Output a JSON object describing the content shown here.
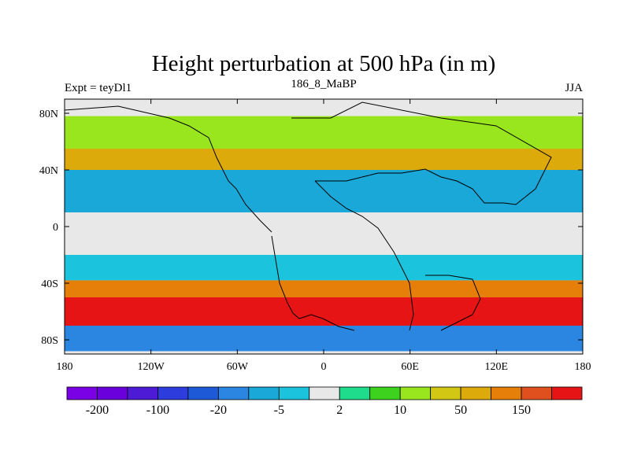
{
  "chart_data": {
    "type": "heatmap",
    "title": "Height perturbation at 500 hPa (in m)",
    "subtitle_left": "Expt = teyDl1",
    "subtitle_center": "186_8_MaBP",
    "subtitle_right": "JJA",
    "xlim": [
      -180,
      180
    ],
    "ylim": [
      -90,
      90
    ],
    "x_ticks": [
      {
        "value": -180,
        "label": "180"
      },
      {
        "value": -120,
        "label": "120W"
      },
      {
        "value": -60,
        "label": "60W"
      },
      {
        "value": 0,
        "label": "0"
      },
      {
        "value": 60,
        "label": "60E"
      },
      {
        "value": 120,
        "label": "120E"
      },
      {
        "value": 180,
        "label": "180"
      }
    ],
    "y_ticks": [
      {
        "value": 80,
        "label": "80N"
      },
      {
        "value": 40,
        "label": "40N"
      },
      {
        "value": 0,
        "label": "0"
      },
      {
        "value": -40,
        "label": "40S"
      },
      {
        "value": -80,
        "label": "80S"
      }
    ],
    "colorbar": {
      "colors": [
        "#7a00e6",
        "#6a00dc",
        "#4d1ad6",
        "#2d3cdd",
        "#1e5ad8",
        "#2a86e0",
        "#19a8d8",
        "#1bc4dc",
        "#e8e8e8",
        "#1edc8c",
        "#3cd21e",
        "#9ae61e",
        "#d2c814",
        "#dcaa0a",
        "#e67e0a",
        "#e0501e",
        "#e61414"
      ],
      "labels": [
        {
          "edge": 1,
          "text": "-200"
        },
        {
          "edge": 3,
          "text": "-100"
        },
        {
          "edge": 5,
          "text": "-20"
        },
        {
          "edge": 7,
          "text": "-5"
        },
        {
          "edge": 9,
          "text": "2"
        },
        {
          "edge": 11,
          "text": "10"
        },
        {
          "edge": 13,
          "text": "50"
        },
        {
          "edge": 15,
          "text": "150"
        }
      ]
    },
    "field_bands": [
      {
        "lat": 78,
        "value": 8
      },
      {
        "lat": 55,
        "value": 40
      },
      {
        "lat": 40,
        "value": -20
      },
      {
        "lat": 10,
        "value": -5
      },
      {
        "lat": -20,
        "value": -10
      },
      {
        "lat": -38,
        "value": 60
      },
      {
        "lat": -50,
        "value": 150
      },
      {
        "lat": -70,
        "value": -50
      },
      {
        "lat": -88,
        "value": 5
      }
    ]
  }
}
